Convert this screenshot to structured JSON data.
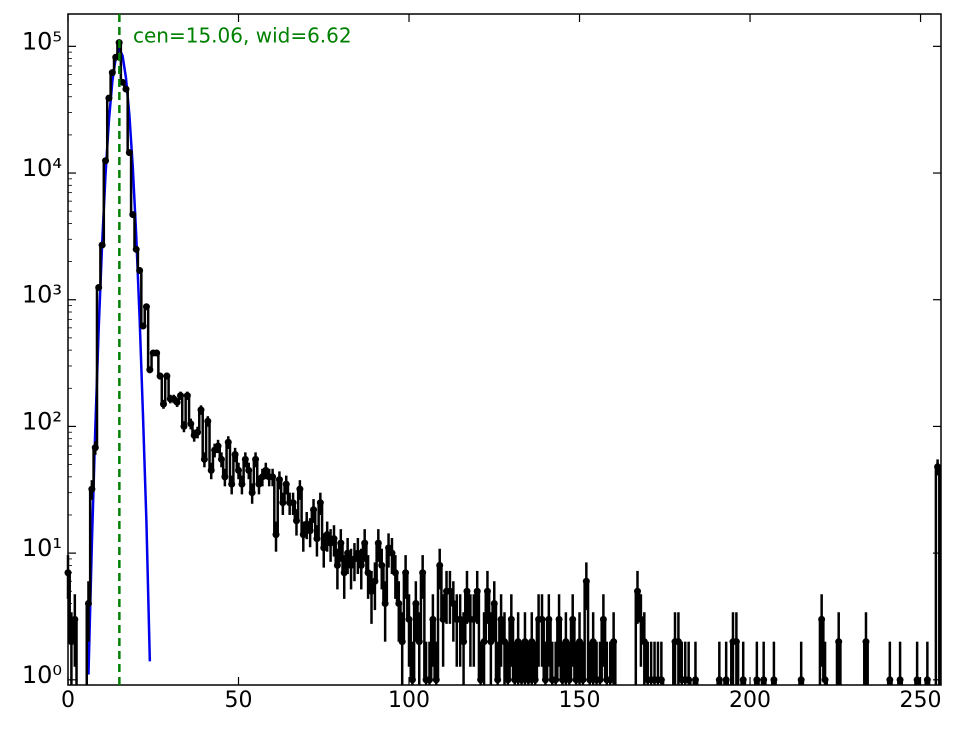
{
  "chart_data": {
    "type": "histogram-errorbar",
    "annotation": "cen=15.06, wid=6.62",
    "vline": 15.06,
    "vline_color": "#008000",
    "color": "#000000",
    "x": [
      0,
      1,
      2,
      6,
      7,
      8,
      9,
      10,
      11,
      12,
      13,
      14,
      15,
      16,
      17,
      18,
      19,
      20,
      21,
      22,
      23,
      24,
      25,
      26,
      27,
      28,
      29,
      30,
      31,
      32,
      33,
      34,
      35,
      36,
      37,
      38,
      39,
      40,
      41,
      42,
      43,
      44,
      45,
      46,
      47,
      48,
      49,
      50,
      51,
      52,
      53,
      54,
      55,
      56,
      57,
      58,
      59,
      60,
      61,
      62,
      63,
      64,
      65,
      66,
      67,
      68,
      69,
      70,
      71,
      72,
      73,
      74,
      75,
      76,
      77,
      78,
      79,
      80,
      81,
      82,
      83,
      84,
      85,
      86,
      87,
      88,
      89,
      90,
      91,
      92,
      93,
      94,
      95,
      96,
      97,
      98,
      99,
      100,
      101,
      102,
      103,
      104,
      105,
      106,
      107,
      108,
      109,
      110,
      111,
      112,
      113,
      114,
      115,
      116,
      117,
      118,
      119,
      120,
      121,
      122,
      123,
      124,
      125,
      126,
      127,
      128,
      129,
      130,
      131,
      132,
      133,
      134,
      135,
      136,
      137,
      138,
      139,
      140,
      141,
      142,
      143,
      144,
      145,
      146,
      147,
      148,
      149,
      150,
      151,
      152,
      153,
      154,
      155,
      156,
      157,
      158,
      159,
      160,
      167,
      168,
      169,
      170,
      171,
      172,
      173,
      174,
      178,
      179,
      180,
      181,
      182,
      184,
      191,
      193,
      195,
      196,
      198,
      202,
      204,
      207,
      215,
      221,
      222,
      226,
      234,
      241,
      244,
      249,
      252,
      255
    ],
    "values": [
      7,
      2,
      3,
      4,
      32,
      68,
      1250,
      2700,
      12500,
      39000,
      62000,
      82000,
      107000,
      52000,
      46000,
      14500,
      4700,
      2500,
      1700,
      620,
      880,
      280,
      380,
      380,
      250,
      150,
      250,
      165,
      165,
      155,
      175,
      100,
      175,
      105,
      85,
      90,
      135,
      55,
      110,
      45,
      65,
      70,
      55,
      40,
      75,
      35,
      60,
      45,
      35,
      55,
      45,
      30,
      55,
      35,
      40,
      45,
      40,
      40,
      14,
      38,
      25,
      35,
      25,
      25,
      18,
      32,
      14,
      17,
      15,
      22,
      13,
      25,
      11,
      14,
      12,
      13,
      8,
      12,
      7,
      10,
      8,
      9,
      10,
      8,
      12,
      7,
      5,
      6,
      12,
      8,
      4,
      11,
      10,
      7,
      4,
      2,
      7,
      3,
      1,
      4,
      2,
      7,
      1,
      1,
      3,
      1,
      8,
      3,
      5,
      5,
      4,
      3,
      3,
      2,
      5,
      3,
      3,
      5,
      1,
      2,
      5,
      2,
      4,
      1,
      3,
      2,
      1,
      3,
      1,
      2,
      1,
      2,
      1,
      2,
      1,
      3,
      3,
      1,
      3,
      1,
      1,
      3,
      1,
      2,
      1,
      3,
      1,
      2,
      1,
      6,
      1,
      2,
      1,
      1,
      3,
      1,
      1,
      2,
      5,
      3,
      2,
      1,
      1,
      1,
      1,
      1,
      2,
      2,
      1,
      1,
      1,
      1,
      1,
      1,
      2,
      2,
      1,
      1,
      1,
      1,
      1,
      3,
      1,
      2,
      2,
      1,
      1,
      1,
      1,
      48
    ],
    "fit": {
      "color": "#0000ee",
      "x": [
        6,
        7,
        8,
        9,
        10,
        11,
        12,
        13,
        14,
        15.06,
        16,
        17,
        18,
        19,
        20,
        21,
        22,
        23,
        24
      ],
      "values": [
        1.1,
        11.8,
        95,
        589,
        2730,
        9700,
        25900,
        52800,
        81400,
        95000,
        84200,
        56400,
        28700,
        11100,
        3240,
        715,
        120,
        17.5,
        1.4
      ]
    },
    "xlim": [
      0,
      256
    ],
    "xticks": [
      0,
      50,
      100,
      150,
      200,
      250
    ],
    "ylim": [
      0.91,
      180000
    ],
    "log_y": true,
    "yticks": [
      {
        "value": 1,
        "label": "10⁰"
      },
      {
        "value": 10,
        "label": "10¹"
      },
      {
        "value": 100,
        "label": "10²"
      },
      {
        "value": 1000,
        "label": "10³"
      },
      {
        "value": 10000,
        "label": "10⁴"
      },
      {
        "value": 100000,
        "label": "10⁵"
      }
    ]
  }
}
